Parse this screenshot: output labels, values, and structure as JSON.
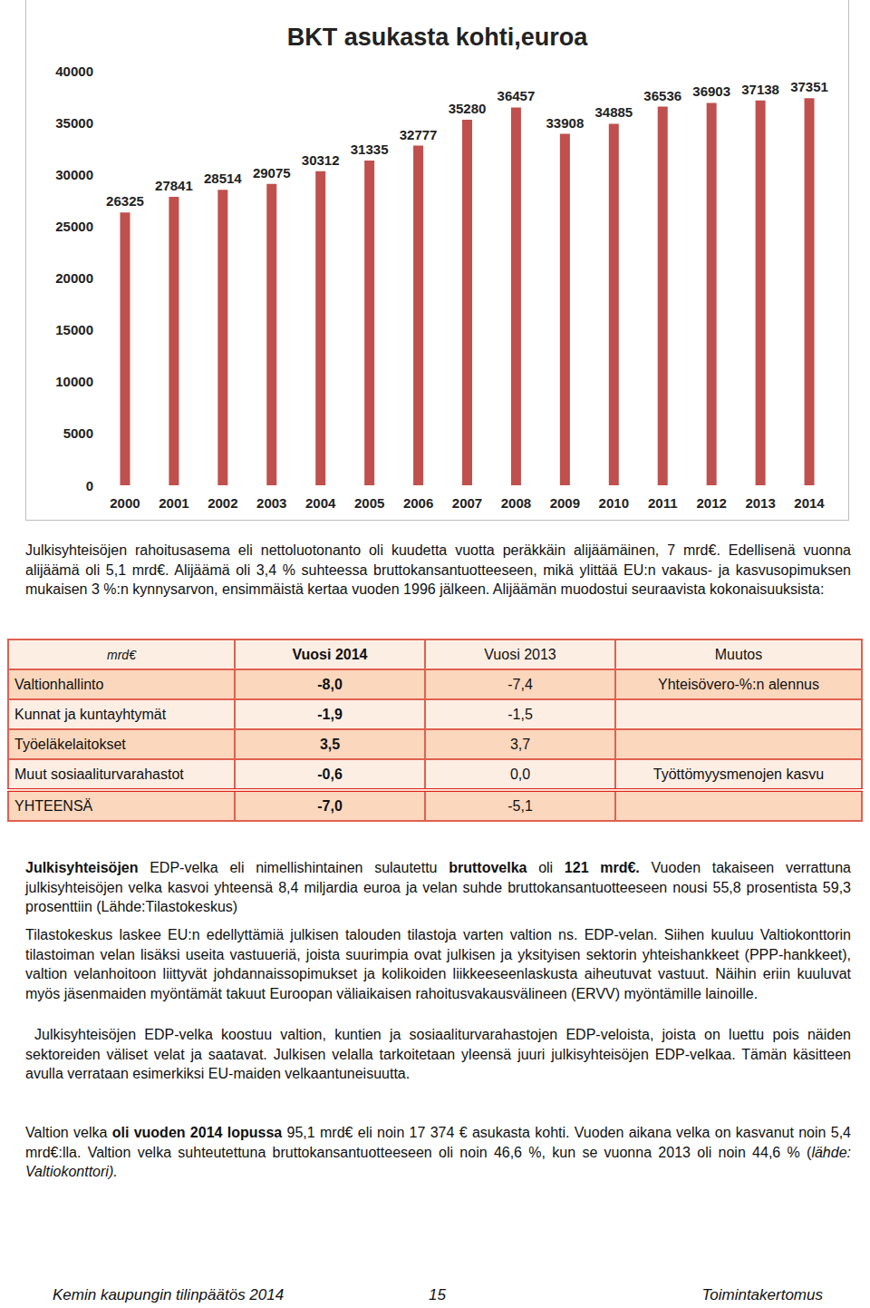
{
  "chart_data": {
    "type": "bar",
    "title": "BKT asukasta kohti,euroa",
    "categories": [
      "2000",
      "2001",
      "2002",
      "2003",
      "2004",
      "2005",
      "2006",
      "2007",
      "2008",
      "2009",
      "2010",
      "2011",
      "2012",
      "2013",
      "2014"
    ],
    "values": [
      26325,
      27841,
      28514,
      29075,
      30312,
      31335,
      32777,
      35280,
      36457,
      33908,
      34885,
      36536,
      36903,
      37138,
      37351
    ],
    "color": "#c0504d",
    "ylim": [
      0,
      40000
    ],
    "yticks": [
      0,
      5000,
      10000,
      15000,
      20000,
      25000,
      30000,
      35000,
      40000
    ],
    "grid": false,
    "data_labels": true
  },
  "paragraphs_before": [
    [
      {
        "text": "Julkisyhteisöjen rahoitusasema eli nettoluotonanto oli kuudetta vuotta peräkkäin alijäämäinen, 7 mrd€. Edellisenä vuonna alijäämä oli 5,1 mrd€. Alijäämä oli 3,4 % suhteessa bruttokansantuotteeseen, mikä ylittää EU:n vakaus- ja kasvusopimuksen mukaisen 3 %:n kynnysarvon, ensimmäistä kertaa vuoden 1996 jälkeen. Alijäämän muodostui seuraavista kokonaisuuksista:",
        "style": "normal"
      }
    ]
  ],
  "table": {
    "header": [
      "mrd€",
      "Vuosi 2014",
      "Vuosi 2013",
      "Muutos"
    ],
    "rows": [
      [
        "Valtionhallinto",
        "-8,0",
        "-7,4",
        "Yhteisövero-%:n  alennus"
      ],
      [
        "Kunnat ja kuntayhtymät",
        "-1,9",
        "-1,5",
        null
      ],
      [
        "Työeläkelaitokset",
        "3,5",
        "3,7",
        null
      ],
      [
        "Muut sosiaaliturvarahastot",
        "-0,6",
        "0,0",
        "Työttömyysmenojen kasvu"
      ],
      [
        "YHTEENSÄ",
        "-7,0",
        "-5,1",
        null
      ]
    ]
  },
  "paragraphs_after": [
    [
      {
        "text": "Julkisyhteisöjen",
        "style": "bold"
      },
      {
        "text": " EDP-velka eli nimellishintainen sulautettu ",
        "style": "normal"
      },
      {
        "text": "bruttovelka",
        "style": "bold"
      },
      {
        "text": " oli ",
        "style": "normal"
      },
      {
        "text": "121 mrd€.",
        "style": "bold"
      },
      {
        "text": " Vuoden takaiseen verrattuna julkisyhteisöjen velka kasvoi yhteensä 8,4 miljardia euroa ja velan suhde bruttokansantuotteeseen nousi 55,8 prosentista 59,3 prosenttiin (Lähde:Tilastokeskus)",
        "style": "normal"
      }
    ],
    [
      {
        "text": "Tilastokeskus laskee EU:n edellyttämiä julkisen talouden tilastoja varten valtion ns. EDP-velan. Siihen kuuluu Valtiokonttorin tilastoiman velan lisäksi useita vastuueriä, joista suurimpia ovat julkisen ja yksityisen sektorin yhteishankkeet (PPP-hankkeet), valtion velanhoitoon liittyvät johdannaissopimukset ja kolikoiden liikkeeseenlaskusta aiheutuvat vastuut. Näihin eriin kuuluvat myös jäsenmaiden myöntämät takuut Euroopan väliaikaisen rahoitusvakausvälineen (ERVV) myöntämille lainoille.",
        "style": "normal"
      }
    ],
    [
      {
        "text": "Julkisyhteisöjen EDP-velka koostuu valtion, kuntien ja sosiaaliturvarahastojen EDP-veloista, joista on luettu pois näiden sektoreiden väliset velat ja saatavat. Julkisen velalla tarkoitetaan yleensä juuri julkisyhteisöjen EDP-velkaa. Tämän käsitteen avulla verrataan esimerkiksi EU-maiden velkaantuneisuutta.",
        "style": "normal"
      }
    ],
    [
      {
        "text": "Valtion velka ",
        "style": "normal"
      },
      {
        "text": "oli vuoden 2014 lopussa",
        "style": "bold"
      },
      {
        "text": " 95,1 mrd€ eli noin 17 374 € asukasta kohti. Vuoden aikana velka on kasvanut noin 5,4 mrd€:lla. Valtion velka suhteutettuna bruttokansantuotteeseen oli noin 46,6 %, kun se vuonna 2013 oli noin 44,6 % (",
        "style": "normal"
      },
      {
        "text": "lähde: Valtiokonttori).",
        "style": "italic"
      }
    ]
  ],
  "footer": {
    "left": "Kemin kaupungin tilinpäätös 2014",
    "center": "15",
    "right": "Toimintakertomus"
  }
}
